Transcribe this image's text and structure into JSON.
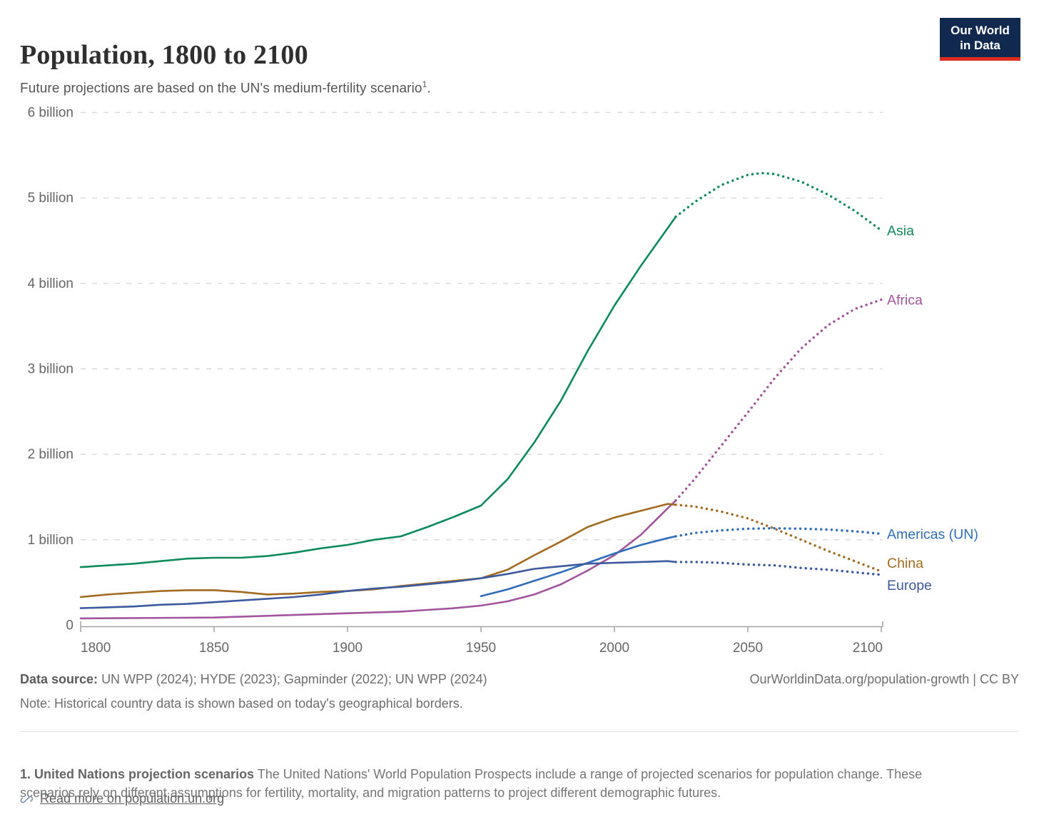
{
  "header": {
    "title": "Population, 1800 to 2100",
    "subtitle": "Future projections are based on the UN's medium-fertility scenario",
    "subtitle_sup": "1",
    "subtitle_end": "."
  },
  "logo": {
    "line1": "Our World",
    "line2": "in Data",
    "bg_color": "#12294f",
    "accent_color": "#e02b20"
  },
  "chart_data": {
    "type": "line",
    "title": "Population, 1800 to 2100",
    "xlabel": "",
    "ylabel": "",
    "x_ticks": [
      {
        "value": 1800,
        "label": "1800"
      },
      {
        "value": 1850,
        "label": "1850"
      },
      {
        "value": 1900,
        "label": "1900"
      },
      {
        "value": 1950,
        "label": "1950"
      },
      {
        "value": 2000,
        "label": "2000"
      },
      {
        "value": 2050,
        "label": "2050"
      },
      {
        "value": 2100,
        "label": "2100"
      }
    ],
    "y_ticks": [
      {
        "value": 6,
        "label": "6 billion"
      },
      {
        "value": 5,
        "label": "5 billion"
      },
      {
        "value": 4,
        "label": "4 billion"
      },
      {
        "value": 3,
        "label": "3 billion"
      },
      {
        "value": 2,
        "label": "2 billion"
      },
      {
        "value": 1,
        "label": "1 billion"
      },
      {
        "value": 0,
        "label": "0"
      }
    ],
    "x_range": [
      1800,
      2100
    ],
    "y_range_billions": [
      0,
      6
    ],
    "grid": "dashed-horizontal",
    "legend_position": "right-of-line-end-labels",
    "projection_start_year": 2023,
    "projection_style": "dotted",
    "unit": "billion people",
    "series": [
      {
        "name": "Asia",
        "color": "#0e8a5c",
        "label_dy": 0,
        "solid": [
          [
            1800,
            0.68
          ],
          [
            1810,
            0.7
          ],
          [
            1820,
            0.72
          ],
          [
            1830,
            0.75
          ],
          [
            1840,
            0.78
          ],
          [
            1850,
            0.79
          ],
          [
            1860,
            0.79
          ],
          [
            1870,
            0.81
          ],
          [
            1880,
            0.85
          ],
          [
            1890,
            0.9
          ],
          [
            1900,
            0.94
          ],
          [
            1910,
            1.0
          ],
          [
            1920,
            1.04
          ],
          [
            1930,
            1.15
          ],
          [
            1940,
            1.27
          ],
          [
            1950,
            1.4
          ],
          [
            1960,
            1.71
          ],
          [
            1970,
            2.14
          ],
          [
            1980,
            2.63
          ],
          [
            1990,
            3.21
          ],
          [
            2000,
            3.74
          ],
          [
            2010,
            4.21
          ],
          [
            2023,
            4.78
          ]
        ],
        "projected": [
          [
            2023,
            4.78
          ],
          [
            2030,
            4.95
          ],
          [
            2040,
            5.15
          ],
          [
            2050,
            5.27
          ],
          [
            2055,
            5.29
          ],
          [
            2060,
            5.28
          ],
          [
            2070,
            5.19
          ],
          [
            2080,
            5.04
          ],
          [
            2090,
            4.85
          ],
          [
            2100,
            4.62
          ]
        ]
      },
      {
        "name": "Africa",
        "color": "#a2559c",
        "label_dy": 0,
        "solid": [
          [
            1800,
            0.08
          ],
          [
            1850,
            0.09
          ],
          [
            1870,
            0.11
          ],
          [
            1900,
            0.14
          ],
          [
            1920,
            0.16
          ],
          [
            1930,
            0.18
          ],
          [
            1940,
            0.2
          ],
          [
            1950,
            0.23
          ],
          [
            1960,
            0.28
          ],
          [
            1970,
            0.36
          ],
          [
            1980,
            0.48
          ],
          [
            1990,
            0.64
          ],
          [
            2000,
            0.82
          ],
          [
            2010,
            1.06
          ],
          [
            2020,
            1.37
          ],
          [
            2023,
            1.46
          ]
        ],
        "projected": [
          [
            2023,
            1.46
          ],
          [
            2030,
            1.71
          ],
          [
            2040,
            2.1
          ],
          [
            2050,
            2.49
          ],
          [
            2060,
            2.89
          ],
          [
            2070,
            3.24
          ],
          [
            2080,
            3.51
          ],
          [
            2090,
            3.7
          ],
          [
            2100,
            3.81
          ]
        ]
      },
      {
        "name": "Americas (UN)",
        "color": "#2f6dbb",
        "label_dy": 0,
        "solid": [
          [
            1950,
            0.34
          ],
          [
            1960,
            0.42
          ],
          [
            1970,
            0.52
          ],
          [
            1980,
            0.62
          ],
          [
            1990,
            0.73
          ],
          [
            2000,
            0.84
          ],
          [
            2010,
            0.94
          ],
          [
            2020,
            1.02
          ],
          [
            2023,
            1.04
          ]
        ],
        "projected": [
          [
            2023,
            1.04
          ],
          [
            2030,
            1.08
          ],
          [
            2040,
            1.11
          ],
          [
            2050,
            1.13
          ],
          [
            2060,
            1.135
          ],
          [
            2070,
            1.13
          ],
          [
            2080,
            1.12
          ],
          [
            2090,
            1.1
          ],
          [
            2100,
            1.07
          ]
        ]
      },
      {
        "name": "China",
        "color": "#a26b21",
        "label_dy": -12,
        "solid": [
          [
            1800,
            0.33
          ],
          [
            1810,
            0.36
          ],
          [
            1820,
            0.38
          ],
          [
            1830,
            0.4
          ],
          [
            1840,
            0.41
          ],
          [
            1850,
            0.41
          ],
          [
            1860,
            0.39
          ],
          [
            1870,
            0.36
          ],
          [
            1880,
            0.37
          ],
          [
            1890,
            0.39
          ],
          [
            1900,
            0.4
          ],
          [
            1910,
            0.42
          ],
          [
            1920,
            0.46
          ],
          [
            1930,
            0.49
          ],
          [
            1940,
            0.52
          ],
          [
            1950,
            0.55
          ],
          [
            1960,
            0.65
          ],
          [
            1970,
            0.82
          ],
          [
            1980,
            0.98
          ],
          [
            1990,
            1.15
          ],
          [
            2000,
            1.26
          ],
          [
            2010,
            1.34
          ],
          [
            2020,
            1.42
          ],
          [
            2023,
            1.41
          ]
        ],
        "projected": [
          [
            2023,
            1.41
          ],
          [
            2030,
            1.39
          ],
          [
            2040,
            1.33
          ],
          [
            2050,
            1.25
          ],
          [
            2060,
            1.13
          ],
          [
            2070,
            1.0
          ],
          [
            2080,
            0.87
          ],
          [
            2090,
            0.75
          ],
          [
            2100,
            0.63
          ]
        ]
      },
      {
        "name": "Europe",
        "color": "#3d5a9e",
        "label_dy": 14,
        "solid": [
          [
            1800,
            0.2
          ],
          [
            1810,
            0.21
          ],
          [
            1820,
            0.22
          ],
          [
            1830,
            0.24
          ],
          [
            1840,
            0.25
          ],
          [
            1850,
            0.27
          ],
          [
            1860,
            0.29
          ],
          [
            1870,
            0.31
          ],
          [
            1880,
            0.33
          ],
          [
            1890,
            0.36
          ],
          [
            1900,
            0.4
          ],
          [
            1910,
            0.43
          ],
          [
            1920,
            0.45
          ],
          [
            1930,
            0.48
          ],
          [
            1940,
            0.51
          ],
          [
            1950,
            0.55
          ],
          [
            1960,
            0.6
          ],
          [
            1970,
            0.66
          ],
          [
            1980,
            0.69
          ],
          [
            1990,
            0.72
          ],
          [
            2000,
            0.73
          ],
          [
            2010,
            0.74
          ],
          [
            2020,
            0.75
          ],
          [
            2023,
            0.74
          ]
        ],
        "projected": [
          [
            2023,
            0.74
          ],
          [
            2030,
            0.74
          ],
          [
            2040,
            0.73
          ],
          [
            2050,
            0.71
          ],
          [
            2060,
            0.7
          ],
          [
            2070,
            0.67
          ],
          [
            2080,
            0.65
          ],
          [
            2090,
            0.62
          ],
          [
            2100,
            0.59
          ]
        ]
      }
    ],
    "style": {
      "grid_color": "#d9d9d9",
      "axis_color": "#a3a3a3",
      "tick_label_color": "#666666"
    }
  },
  "footer": {
    "data_source_label": "Data source:",
    "data_source_value": "UN WPP (2024); HYDE (2023); Gapminder (2022); UN WPP (2024)",
    "note_label": "Note:",
    "note_value": "Historical country data is shown based on today's geographical borders.",
    "attribution": "OurWorldinData.org/population-growth | CC BY"
  },
  "footnote": {
    "title": "1. United Nations projection scenarios",
    "body": "The United Nations' World Population Prospects include a range of projected scenarios for population change. These scenarios rely on different assumptions for fertility, mortality, and migration patterns to project different demographic futures.",
    "link_label": "Read more on population.un.org",
    "link_icon": "link-icon"
  }
}
